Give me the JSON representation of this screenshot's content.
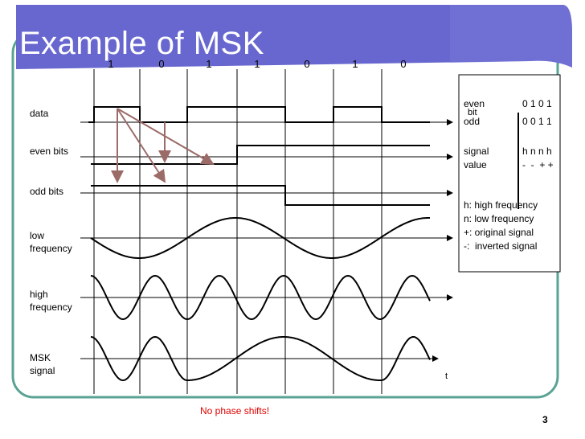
{
  "title": "Example of MSK",
  "data_bits": [
    "1",
    "0",
    "1",
    "1",
    "0",
    "1",
    "0"
  ],
  "row_labels": {
    "data": "data",
    "even_bits": "even bits",
    "odd_bits": "odd bits",
    "low_frequency": [
      "low",
      "frequency"
    ],
    "high_frequency": [
      "high",
      "frequency"
    ],
    "msk_signal": [
      "MSK",
      "signal"
    ]
  },
  "time_axis_label": "t",
  "legend": {
    "even_label": "even",
    "even_label_sub": "bit",
    "even_bits": "0 1 0 1",
    "odd_label": "odd",
    "odd_bits": "0 0 1 1",
    "signal_label": "signal",
    "signal_values": "h n n h",
    "value_label": "value",
    "value_values": "-  -  + +",
    "notes": [
      "h: high frequency",
      "n: low frequency",
      "+: original signal",
      "-:  inverted signal"
    ]
  },
  "footer_note": "No phase shifts!",
  "page_number": "3",
  "colors": {
    "header": "#6767cf",
    "header_light": "#7b7bd9",
    "frame_border": "#5aa394",
    "arrow": "#9b6b68",
    "note_red": "#e00000"
  }
}
